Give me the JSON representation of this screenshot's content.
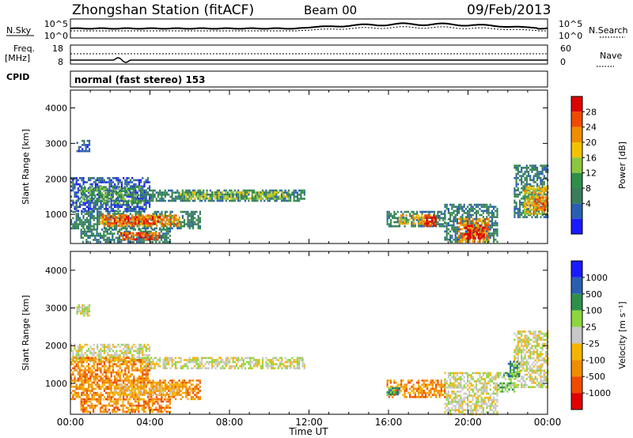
{
  "header": {
    "title": "Zhongshan Station (fitACF)",
    "beam": "Beam 00",
    "date": "09/Feb/2013"
  },
  "status_panels": {
    "nsky": {
      "label": "N.Sky",
      "ticks": [
        "10^5",
        "10^0"
      ]
    },
    "nsearch": {
      "label": "N.Search",
      "ticks": [
        "10^5",
        "10^0"
      ]
    },
    "freq": {
      "label_top": "Freq.",
      "label_bottom": "[MHz]",
      "ticks": [
        "18",
        "8"
      ]
    },
    "nave": {
      "label": "Nave",
      "ticks": [
        "60",
        "0"
      ]
    },
    "cpid": {
      "label": "CPID",
      "value": "normal (fast stereo) 153"
    }
  },
  "x_axis": {
    "label": "Time UT",
    "ticks": [
      "00:00",
      "04:00",
      "08:00",
      "12:00",
      "16:00",
      "20:00",
      "00:00"
    ]
  },
  "colors": {
    "power": [
      "#1a1aff",
      "#2a5fb0",
      "#3b7d5a",
      "#2f8f4a",
      "#8cc63f",
      "#f2c200",
      "#f08c00",
      "#f04a00",
      "#dd0000"
    ],
    "velocity": [
      "#e00000",
      "#f04a00",
      "#f08c00",
      "#f5b400",
      "#c8c8c8",
      "#8cd640",
      "#2f8f4a",
      "#2a5fb0",
      "#1a1aff"
    ]
  },
  "chart_data": [
    {
      "type": "heatmap",
      "name": "power",
      "ylabel": "Slant Range [km]",
      "ylim": [
        180,
        4500
      ],
      "yticks": [
        "4000",
        "3000",
        "2000",
        "1000"
      ],
      "xlim": [
        0,
        24
      ],
      "colorbar": {
        "label": "Power [dB]",
        "ticks": [
          "28",
          "24",
          "20",
          "16",
          "12",
          "8",
          "4"
        ]
      },
      "regions": [
        {
          "t0": 0.3,
          "t1": 1.0,
          "r0": 2800,
          "r1": 3100,
          "level": 1
        },
        {
          "t0": 0.0,
          "t1": 4.0,
          "r0": 1100,
          "r1": 2050,
          "level": 1
        },
        {
          "t0": 0.5,
          "t1": 3.5,
          "r0": 1300,
          "r1": 1800,
          "level": 3
        },
        {
          "t0": 0.0,
          "t1": 6.5,
          "r0": 600,
          "r1": 1100,
          "level": 2
        },
        {
          "t0": 1.5,
          "t1": 5.5,
          "r0": 700,
          "r1": 1000,
          "level": 6
        },
        {
          "t0": 2.0,
          "t1": 4.5,
          "r0": 750,
          "r1": 950,
          "level": 7
        },
        {
          "t0": 3.5,
          "t1": 11.8,
          "r0": 1400,
          "r1": 1700,
          "level": 2
        },
        {
          "t0": 5.5,
          "t1": 11.0,
          "r0": 1450,
          "r1": 1650,
          "level": 4
        },
        {
          "t0": 0.5,
          "t1": 5.0,
          "r0": 250,
          "r1": 600,
          "level": 2
        },
        {
          "t0": 2.5,
          "t1": 4.5,
          "r0": 300,
          "r1": 500,
          "level": 7
        },
        {
          "t0": 15.9,
          "t1": 18.8,
          "r0": 650,
          "r1": 1100,
          "level": 2
        },
        {
          "t0": 16.5,
          "t1": 18.3,
          "r0": 750,
          "r1": 1000,
          "level": 5
        },
        {
          "t0": 17.8,
          "t1": 18.4,
          "r0": 700,
          "r1": 1000,
          "level": 8
        },
        {
          "t0": 18.8,
          "t1": 21.5,
          "r0": 200,
          "r1": 1300,
          "level": 2
        },
        {
          "t0": 19.5,
          "t1": 21.0,
          "r0": 250,
          "r1": 900,
          "level": 6
        },
        {
          "t0": 19.8,
          "t1": 20.8,
          "r0": 300,
          "r1": 700,
          "level": 8
        },
        {
          "t0": 22.3,
          "t1": 24.0,
          "r0": 900,
          "r1": 2400,
          "level": 2
        },
        {
          "t0": 22.8,
          "t1": 24.0,
          "r0": 1000,
          "r1": 1800,
          "level": 5
        },
        {
          "t0": 23.3,
          "t1": 24.0,
          "r0": 1100,
          "r1": 1500,
          "level": 7
        }
      ]
    },
    {
      "type": "heatmap",
      "name": "velocity",
      "ylabel": "Slant Range [km]",
      "ylim": [
        180,
        4500
      ],
      "yticks": [
        "4000",
        "3000",
        "2000",
        "1000"
      ],
      "xlim": [
        0,
        24
      ],
      "colorbar": {
        "label": "Velocity [m s⁻¹]",
        "ticks": [
          "1000",
          "500",
          "100",
          "25",
          "-25",
          "-100",
          "-500",
          "-1000"
        ]
      },
      "regions": [
        {
          "t0": 0.3,
          "t1": 1.0,
          "r0": 2800,
          "r1": 3100,
          "level": 4
        },
        {
          "t0": 0.0,
          "t1": 4.0,
          "r0": 1600,
          "r1": 2050,
          "level": 4
        },
        {
          "t0": 0.0,
          "t1": 4.0,
          "r0": 1100,
          "r1": 1700,
          "level": 2
        },
        {
          "t0": 0.0,
          "t1": 6.5,
          "r0": 600,
          "r1": 1100,
          "level": 2
        },
        {
          "t0": 2.0,
          "t1": 5.5,
          "r0": 700,
          "r1": 1000,
          "level": 3
        },
        {
          "t0": 3.5,
          "t1": 11.8,
          "r0": 1400,
          "r1": 1700,
          "level": 4
        },
        {
          "t0": 0.5,
          "t1": 5.0,
          "r0": 250,
          "r1": 600,
          "level": 2
        },
        {
          "t0": 15.9,
          "t1": 18.8,
          "r0": 650,
          "r1": 1100,
          "level": 2
        },
        {
          "t0": 15.9,
          "t1": 16.6,
          "r0": 700,
          "r1": 900,
          "level": 6
        },
        {
          "t0": 18.8,
          "t1": 21.5,
          "r0": 200,
          "r1": 1300,
          "level": 4
        },
        {
          "t0": 21.5,
          "t1": 22.3,
          "r0": 800,
          "r1": 1300,
          "level": 5
        },
        {
          "t0": 22.3,
          "t1": 24.0,
          "r0": 900,
          "r1": 2400,
          "level": 4
        },
        {
          "t0": 22.0,
          "t1": 22.6,
          "r0": 1200,
          "r1": 1600,
          "level": 6
        }
      ]
    }
  ]
}
